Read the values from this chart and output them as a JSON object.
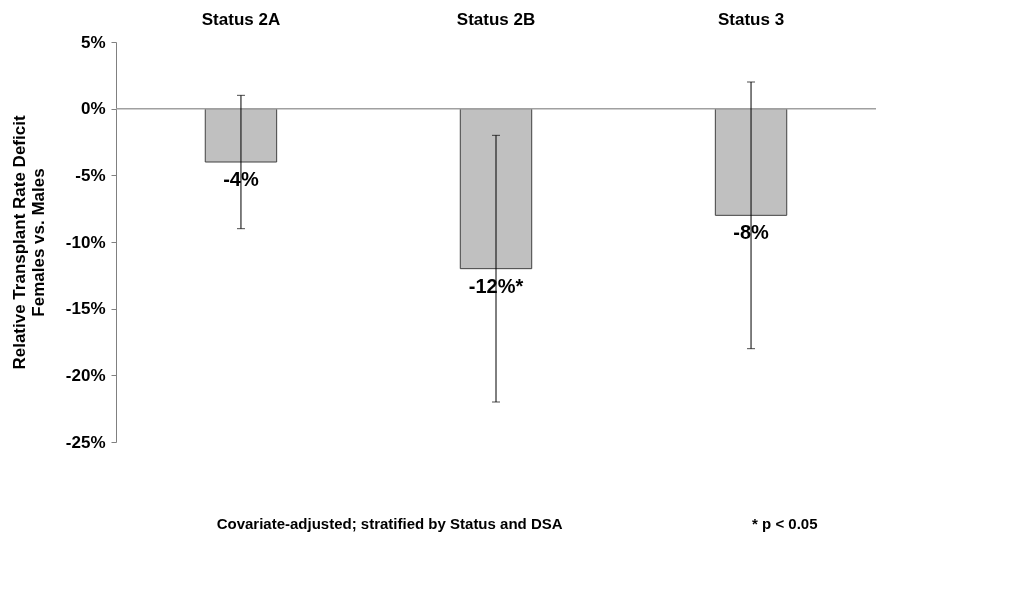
{
  "chart_data": {
    "type": "bar",
    "ylabel": "Relative Transplant Rate Deficit\nFemales vs. Males",
    "categories": [
      "Status 2A",
      "Status 2B",
      "Status 3"
    ],
    "values": [
      -4,
      -12,
      -8
    ],
    "colors": [
      "#c0c0c0",
      "#c0c0c0",
      "#c0c0c0"
    ],
    "errors": [
      [
        -9,
        1
      ],
      [
        -22,
        -2
      ],
      [
        -18,
        2
      ]
    ],
    "value_labels": [
      "-4%",
      "-12%*",
      "-8%"
    ],
    "ylim": [
      -25,
      5
    ],
    "yticks": [
      {
        "value": 5,
        "label": "5%"
      },
      {
        "value": 0,
        "label": "0%"
      },
      {
        "value": -5,
        "label": "-5%"
      },
      {
        "value": -10,
        "label": "-10%"
      },
      {
        "value": -15,
        "label": "-15%"
      },
      {
        "value": -20,
        "label": "-20%"
      },
      {
        "value": -25,
        "label": "-25%"
      }
    ],
    "ref_lines": [
      {
        "axis": "y",
        "value": 0,
        "label": null,
        "color": "#a0a0a0"
      }
    ],
    "annotations": [
      "Covariate-adjusted; stratified by Status and DSA",
      "* p < 0.05"
    ],
    "grid": false
  }
}
